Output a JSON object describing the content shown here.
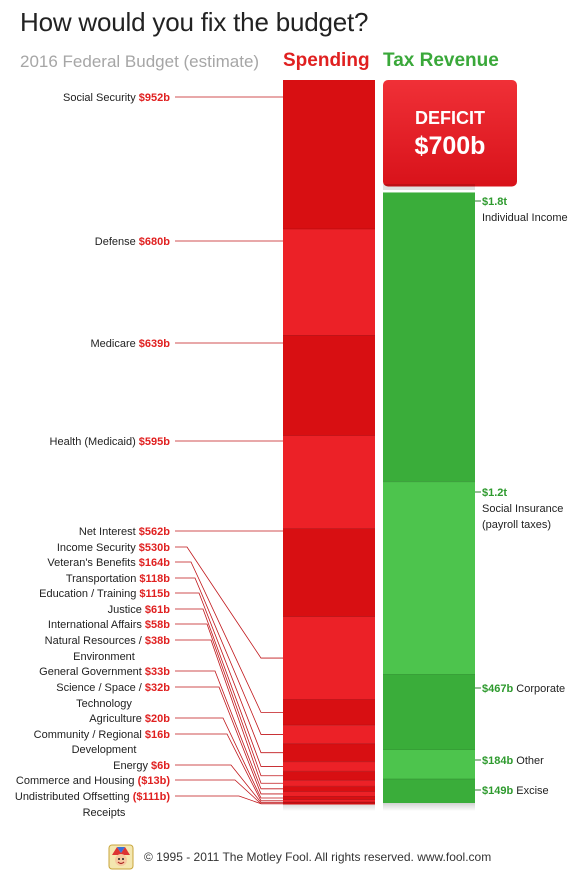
{
  "title": "How would you fix the budget?",
  "subtitle": "2016 Federal Budget (estimate)",
  "columns": {
    "spending": "Spending",
    "revenue": "Tax Revenue"
  },
  "deficit": {
    "label": "DEFICIT",
    "value": "$700b"
  },
  "footer": "© 1995 - 2011 The Motley Fool. All rights reserved. www.fool.com",
  "colors": {
    "spending_dark": "#d80f12",
    "spending_light": "#ec2127",
    "revenue_dark": "#3aad3a",
    "revenue_light": "#4dc44d",
    "deficit": "#e8151b",
    "label_value": "#e02020",
    "revenue_value": "#2e9a2e"
  },
  "chart_data": {
    "type": "stacked bar",
    "units": "billions of dollars",
    "spending": {
      "name": "Spending",
      "items": [
        {
          "label": "Social Security",
          "value_text": "$952b",
          "value": 952
        },
        {
          "label": "Defense",
          "value_text": "$680b",
          "value": 680
        },
        {
          "label": "Medicare",
          "value_text": "$639b",
          "value": 639
        },
        {
          "label": "Health (Medicaid)",
          "value_text": "$595b",
          "value": 595
        },
        {
          "label": "Net Interest",
          "value_text": "$562b",
          "value": 562
        },
        {
          "label": "Income Security",
          "value_text": "$530b",
          "value": 530
        },
        {
          "label": "Veteran's Benefits",
          "value_text": "$164b",
          "value": 164
        },
        {
          "label": "Transportation",
          "value_text": "$118b",
          "value": 118
        },
        {
          "label": "Education / Training",
          "value_text": "$115b",
          "value": 115
        },
        {
          "label": "Justice",
          "value_text": "$61b",
          "value": 61
        },
        {
          "label": "International Affairs",
          "value_text": "$58b",
          "value": 58
        },
        {
          "label": "Natural Resources /",
          "label2": "Environment",
          "value_text": "$38b",
          "value": 38
        },
        {
          "label": "General Government",
          "value_text": "$33b",
          "value": 33
        },
        {
          "label": "Science / Space /",
          "label2": "Technology",
          "value_text": "$32b",
          "value": 32
        },
        {
          "label": "Agriculture",
          "value_text": "$20b",
          "value": 20
        },
        {
          "label": "Community / Regional",
          "label2": "Development",
          "value_text": "$16b",
          "value": 16
        },
        {
          "label": "Energy",
          "value_text": "$6b",
          "value": 6
        },
        {
          "label": "Commerce and Housing",
          "value_text": "($13b)",
          "value": -13
        },
        {
          "label": "Undistributed Offsetting",
          "label2": "Receipts",
          "value_text": "($111b)",
          "value": -111
        }
      ]
    },
    "revenue": {
      "name": "Tax Revenue",
      "items": [
        {
          "label": "Individual Income",
          "value_text": "$1.8t",
          "value": 1800
        },
        {
          "label": "Social Insurance",
          "label2": "(payroll taxes)",
          "value_text": "$1.2t",
          "value": 1200
        },
        {
          "label": "Corporate",
          "value_text": "$467b",
          "value": 467
        },
        {
          "label": "Other",
          "value_text": "$184b",
          "value": 184
        },
        {
          "label": "Excise",
          "value_text": "$149b",
          "value": 149
        }
      ]
    }
  }
}
